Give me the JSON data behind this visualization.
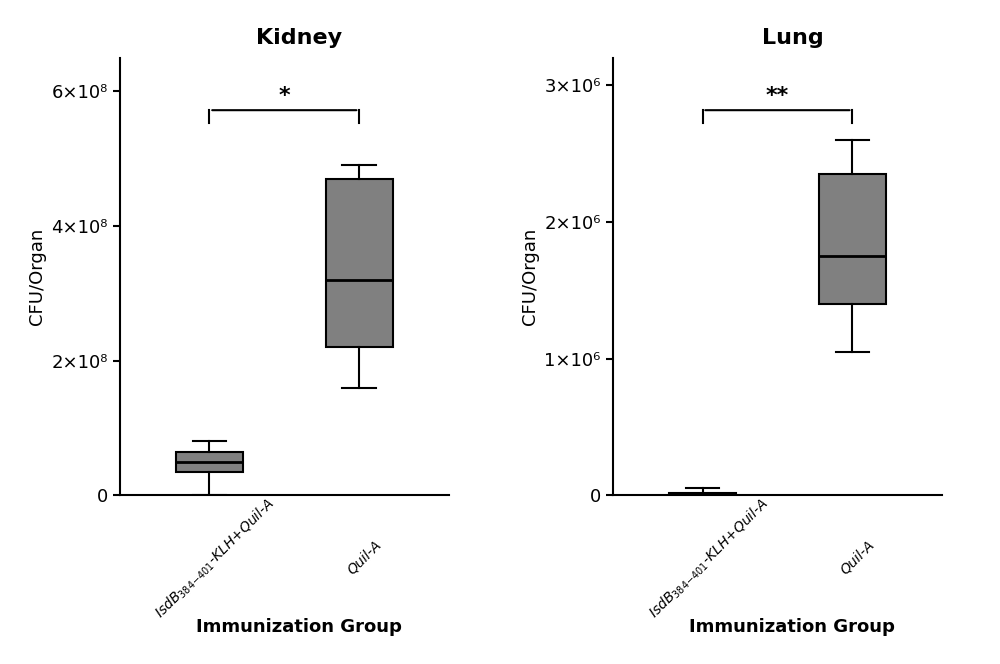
{
  "kidney": {
    "title": "Kidney",
    "xlabel": "Immunization Group",
    "ylabel": "CFU/Organ",
    "ylim": [
      0,
      650000000.0
    ],
    "yticks": [
      0,
      200000000.0,
      400000000.0,
      600000000.0
    ],
    "ytick_labels": [
      "0",
      "2×10⁸",
      "4×10⁸",
      "6×10⁸"
    ],
    "box1": {
      "whislo": 0,
      "q1": 35000000.0,
      "med": 50000000.0,
      "q3": 65000000.0,
      "whishi": 80000000.0,
      "label": "IsdB_{384-401}-KLH+Quil-A"
    },
    "box2": {
      "whislo": 160000000.0,
      "q1": 220000000.0,
      "med": 320000000.0,
      "q3": 470000000.0,
      "whishi": 490000000.0,
      "label": "Quil-A"
    },
    "sig_label": "*",
    "box_color": "#808080",
    "box_color1": "#606060"
  },
  "lung": {
    "title": "Lung",
    "xlabel": "Immunization Group",
    "ylabel": "CFU/Organ",
    "ylim": [
      0,
      3200000.0
    ],
    "yticks": [
      0,
      1000000.0,
      2000000.0,
      3000000.0
    ],
    "ytick_labels": [
      "0",
      "1×10⁶",
      "2×10⁶",
      "3×10⁶"
    ],
    "box1": {
      "whislo": 0,
      "q1": 0,
      "med": 0,
      "q3": 20000.0,
      "whishi": 50000.0,
      "label": "IsdB_{384-401}-KLH+Quil-A"
    },
    "box2": {
      "whislo": 1050000.0,
      "q1": 1400000.0,
      "med": 1750000.0,
      "q3": 2350000.0,
      "whishi": 2600000.0,
      "label": "Quil-A"
    },
    "sig_label": "**",
    "box_color": "#808080",
    "box_color1": "#606060"
  },
  "background_color": "#ffffff",
  "box_fill_color": "#808080",
  "box_edge_color": "#000000",
  "median_color": "#000000",
  "whisker_color": "#000000",
  "cap_color": "#000000"
}
